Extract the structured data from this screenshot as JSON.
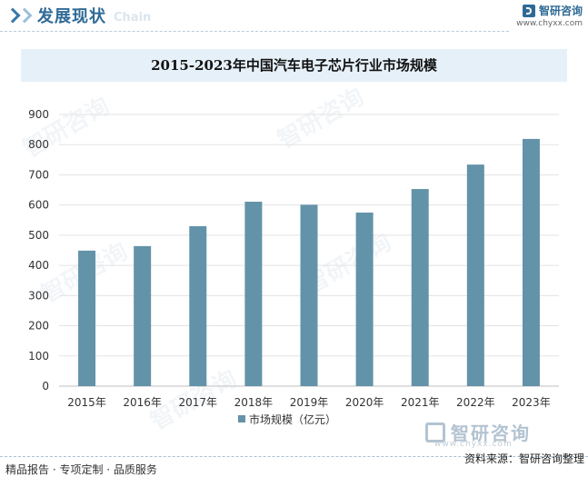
{
  "header": {
    "title": "发展现状",
    "subtitle_en": "Chain",
    "brand_name": "智研咨询",
    "brand_url": "www.chyxx.com"
  },
  "watermark": {
    "brand_name": "智研咨询",
    "brand_url": "www.chyxx.com"
  },
  "footer": {
    "left_text": "精品报告 · 专项定制 · 品质服务",
    "source_text": "资料来源：智研咨询整理"
  },
  "colors": {
    "accent": "#2f6a96",
    "bar": "#6393a9",
    "title_band": "#e6f0f8"
  },
  "chart_data": {
    "type": "bar",
    "title": "2015-2023年中国汽车电子芯片行业市场规模",
    "categories": [
      "2015年",
      "2016年",
      "2017年",
      "2018年",
      "2019年",
      "2020年",
      "2021年",
      "2022年",
      "2023年"
    ],
    "series": [
      {
        "name": "市场规模（亿元）",
        "values": [
          449,
          464,
          530,
          611,
          601,
          575,
          653,
          734,
          819
        ]
      }
    ],
    "ylim": [
      0,
      900
    ],
    "yticks": [
      0,
      100,
      200,
      300,
      400,
      500,
      600,
      700,
      800,
      900
    ],
    "grid": true,
    "legend": "bottom-center"
  }
}
